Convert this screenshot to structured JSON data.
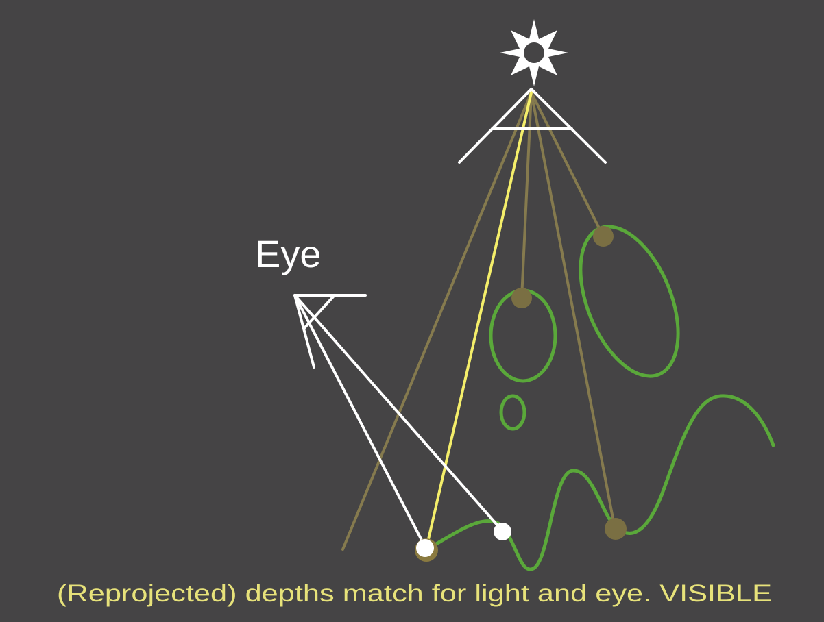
{
  "diagram": {
    "eye_label": "Eye",
    "caption": "(Reprojected) depths match for light and eye.  VISIBLE"
  },
  "colors": {
    "background": "#454445",
    "white": "#ffffff",
    "yellow_ray": "#f4ee6a",
    "faded_ray": "#857a4e",
    "shadow_sample": "#7a6f43",
    "geometry_green": "#5aa83a",
    "caption_yellow": "#e7e27a"
  },
  "icons": {
    "light": "sun-icon",
    "eye": "eye-frustum-icon"
  }
}
